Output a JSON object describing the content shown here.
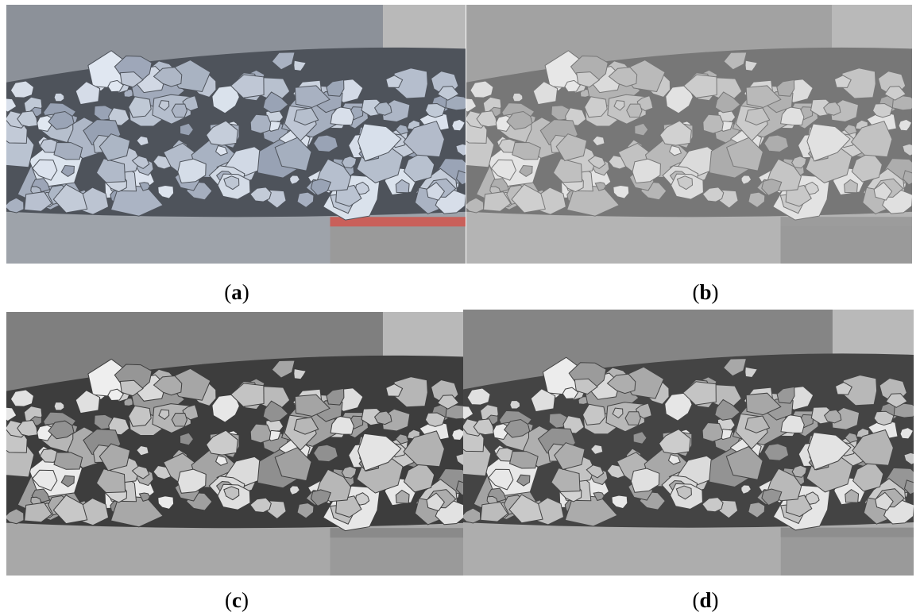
{
  "panels": [
    {
      "label": {
        "open": "(",
        "letter": "a",
        "close": ")"
      }
    },
    {
      "label": {
        "open": "(",
        "letter": "b",
        "close": ")"
      }
    },
    {
      "label": {
        "open": "(",
        "letter": "c",
        "close": ")"
      }
    },
    {
      "label": {
        "open": "(",
        "letter": "d",
        "close": ")"
      }
    }
  ]
}
